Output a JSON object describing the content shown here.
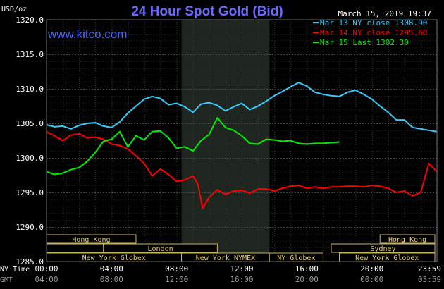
{
  "chart_data": {
    "type": "line",
    "title": "24 Hour Spot Gold (Bid)",
    "watermark": "www.kitco.com",
    "timestamp": "March 15, 2019 19:37",
    "ylabel": "USD/oz",
    "ylim": [
      1285.0,
      1320.0
    ],
    "ytick_labels": [
      "1320.0",
      "1315.0",
      "1310.0",
      "1305.0",
      "1300.0",
      "1295.0",
      "1290.0",
      "1285.0"
    ],
    "ytick_values": [
      1320,
      1315,
      1310,
      1305,
      1300,
      1295,
      1290,
      1285
    ],
    "xlim": [
      0,
      24
    ],
    "x_axis_rows": [
      {
        "label": "NY Time",
        "color": "#ffffff",
        "ticks": [
          "00:00",
          "04:00",
          "08:00",
          "12:00",
          "16:00",
          "20:00",
          "23:59"
        ]
      },
      {
        "label": "GMT",
        "color": "#9a9a9a",
        "ticks": [
          "04:00",
          "08:00",
          "12:00",
          "16:00",
          "20:00",
          "00:00",
          "03:59"
        ]
      }
    ],
    "xtick_values": [
      0,
      4,
      8,
      12,
      16,
      20,
      23.98
    ],
    "grid": true,
    "shaded_region": [
      8.3,
      13.7
    ],
    "legend_position": "top-right",
    "series": [
      {
        "name": "Mar 13 NY close 1308.90",
        "color": "#33ccff",
        "x": [
          0,
          0.5,
          1,
          1.5,
          2,
          2.5,
          3,
          3.5,
          4,
          4.5,
          5,
          5.5,
          6,
          6.5,
          7,
          7.5,
          8,
          8.5,
          9,
          9.5,
          10,
          10.5,
          11,
          11.5,
          12,
          12.5,
          13,
          13.5,
          14,
          14.5,
          15,
          15.5,
          16,
          16.5,
          17,
          17.5,
          18,
          18.5,
          19,
          19.5,
          20,
          20.5,
          21,
          21.5,
          22,
          22.5,
          23,
          23.5,
          24
        ],
        "values": [
          1304.8,
          1304.5,
          1304.6,
          1304.2,
          1304.7,
          1305.0,
          1305.1,
          1304.6,
          1304.4,
          1305.2,
          1306.5,
          1307.5,
          1308.5,
          1308.9,
          1308.6,
          1307.7,
          1307.9,
          1307.4,
          1306.6,
          1307.8,
          1308.0,
          1307.6,
          1306.8,
          1307.4,
          1307.9,
          1307.0,
          1307.5,
          1308.2,
          1309.0,
          1309.6,
          1310.3,
          1310.9,
          1310.4,
          1309.5,
          1309.2,
          1309.0,
          1308.9,
          1309.5,
          1309.8,
          1309.2,
          1308.5,
          1307.5,
          1306.6,
          1305.5,
          1305.5,
          1304.4,
          1304.2,
          1304.0,
          1303.8
        ]
      },
      {
        "name": "Mar 14 NY close 1295.60",
        "color": "#ff0000",
        "x": [
          0,
          0.5,
          1,
          1.5,
          2,
          2.5,
          3,
          3.5,
          4,
          4.5,
          5,
          5.5,
          6,
          6.5,
          7,
          7.5,
          8,
          8.5,
          9,
          9.3,
          9.6,
          10,
          10.5,
          11,
          11.5,
          12,
          12.5,
          13,
          13.5,
          14,
          14.5,
          15,
          15.5,
          16,
          16.5,
          17,
          17.5,
          18,
          18.5,
          19,
          19.5,
          20,
          20.5,
          21,
          21.5,
          22,
          22.5,
          23,
          23.5,
          24
        ],
        "values": [
          1303.8,
          1303.2,
          1302.5,
          1303.3,
          1303.5,
          1302.9,
          1303.0,
          1302.7,
          1302.0,
          1301.8,
          1301.3,
          1300.3,
          1299.2,
          1297.4,
          1298.4,
          1297.6,
          1296.6,
          1296.8,
          1297.4,
          1296.2,
          1292.7,
          1294.3,
          1295.4,
          1294.7,
          1295.2,
          1295.3,
          1294.9,
          1295.5,
          1295.5,
          1295.2,
          1295.6,
          1295.9,
          1296.0,
          1295.6,
          1295.8,
          1295.6,
          1295.8,
          1295.8,
          1295.9,
          1295.9,
          1295.8,
          1296.0,
          1295.9,
          1295.6,
          1295.0,
          1295.2,
          1294.5,
          1295.0,
          1299.2,
          1298.0
        ]
      },
      {
        "name": "Mar 15 Last 1302.30",
        "color": "#00ee00",
        "x": [
          0,
          0.5,
          1,
          1.5,
          2,
          2.5,
          3,
          3.5,
          4,
          4.5,
          5,
          5.5,
          6,
          6.5,
          7,
          7.5,
          8,
          8.5,
          9,
          9.5,
          10,
          10.5,
          11,
          11.5,
          12,
          12.5,
          13,
          13.5,
          14,
          14.5,
          15,
          15.5,
          16,
          16.5,
          17,
          17.5,
          18
        ],
        "values": [
          1298.0,
          1297.6,
          1297.8,
          1298.3,
          1298.6,
          1299.5,
          1300.8,
          1302.4,
          1302.7,
          1303.8,
          1301.6,
          1303.2,
          1302.6,
          1303.8,
          1303.9,
          1302.9,
          1301.4,
          1301.6,
          1301.0,
          1302.5,
          1303.4,
          1305.8,
          1304.4,
          1304.0,
          1303.2,
          1302.1,
          1302.0,
          1302.7,
          1302.6,
          1302.4,
          1302.5,
          1302.1,
          1302.0,
          1302.1,
          1302.1,
          1302.2,
          1302.3
        ]
      }
    ],
    "market_bars": [
      {
        "label": "Hong Kong",
        "start": -0.3,
        "end": 5.5,
        "row": 0
      },
      {
        "label": "Hong Kong",
        "start": 20.5,
        "end": 23.99,
        "row": 0
      },
      {
        "label": "",
        "start": -0.3,
        "end": 3.5,
        "row": 1
      },
      {
        "label": "London",
        "start": 3.5,
        "end": 10.5,
        "row": 1
      },
      {
        "label": "Sydney",
        "start": 17.5,
        "end": 23.99,
        "row": 1
      },
      {
        "label": "New York Globex",
        "start": -0.3,
        "end": 8.3,
        "row": 2
      },
      {
        "label": "New York NYMEX",
        "start": 8.3,
        "end": 13.7,
        "row": 2
      },
      {
        "label": "NY Globex",
        "start": 13.7,
        "end": 17.0,
        "row": 2
      },
      {
        "label": "New York Globex",
        "start": 18.0,
        "end": 23.99,
        "row": 2
      }
    ]
  }
}
